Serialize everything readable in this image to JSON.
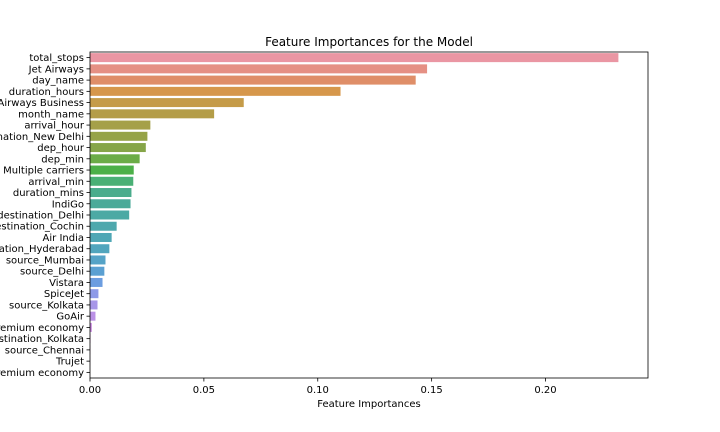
{
  "chart_data": {
    "type": "bar",
    "orientation": "horizontal",
    "title": "Feature Importances for the Model",
    "xlabel": "Feature Importances",
    "ylabel": "",
    "xlim": [
      0,
      0.245
    ],
    "xticks": [
      "0.00",
      "0.05",
      "0.10",
      "0.15",
      "0.20"
    ],
    "grid": false,
    "categories": [
      "total_stops",
      "Jet Airways",
      "day_name",
      "duration_hours",
      "Jet Airways Business",
      "month_name",
      "arrival_hour",
      "destination_New Delhi",
      "dep_hour",
      "dep_min",
      "Multiple carriers",
      "arrival_min",
      "duration_mins",
      "IndiGo",
      "destination_Delhi",
      "destination_Cochin",
      "Air India",
      "destination_Hyderabad",
      "source_Mumbai",
      "source_Delhi",
      "Vistara",
      "SpiceJet",
      "source_Kolkata",
      "GoAir",
      "Multiple carriers Premium economy",
      "destination_Kolkata",
      "source_Chennai",
      "Trujet",
      "Vistara Premium economy"
    ],
    "values": [
      0.232,
      0.148,
      0.143,
      0.11,
      0.0675,
      0.0545,
      0.0265,
      0.0252,
      0.0245,
      0.0218,
      0.0192,
      0.019,
      0.0182,
      0.0178,
      0.0172,
      0.0117,
      0.0095,
      0.0085,
      0.0068,
      0.0063,
      0.0055,
      0.0037,
      0.0033,
      0.0024,
      0.0008,
      0.0002,
      0.0001,
      5e-05,
      3e-05
    ],
    "colors": [
      "#ea96a3",
      "#e59084",
      "#df8e68",
      "#d6974b",
      "#c59b48",
      "#b49d48",
      "#a5a048",
      "#96a348",
      "#86a548",
      "#6bac47",
      "#4cb048",
      "#4ab075",
      "#4aac8c",
      "#4baa99",
      "#4ca9a4",
      "#4ea8ad",
      "#4fa7b5",
      "#51a5bd",
      "#55a3c7",
      "#5ba0d2",
      "#6c9de0",
      "#8d9ae8",
      "#a796e8",
      "#bb91e6",
      "#cc8ce2",
      "#da88da",
      "#e387cf",
      "#e98ac2",
      "#ec8db6"
    ]
  }
}
